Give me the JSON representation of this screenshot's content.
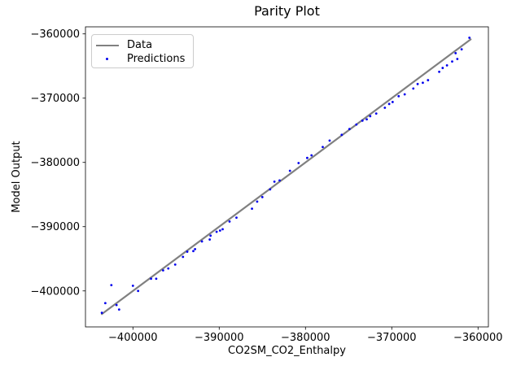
{
  "chart_data": {
    "type": "scatter",
    "title": "Parity Plot",
    "xlabel": "CO2SM_CO2_Enthalpy",
    "ylabel": "Model Output",
    "xlim": [
      -405500,
      -358800
    ],
    "ylim": [
      -405600,
      -358900
    ],
    "grid": false,
    "legend_position": "upper left",
    "xticks": {
      "values": [
        -400000,
        -390000,
        -380000,
        -370000,
        -360000
      ],
      "labels": [
        "−400000",
        "−390000",
        "−380000",
        "−370000",
        "−360000"
      ]
    },
    "yticks": {
      "values": [
        -360000,
        -370000,
        -380000,
        -390000,
        -400000
      ],
      "labels": [
        "−360000",
        "−370000",
        "−380000",
        "−390000",
        "−400000"
      ]
    },
    "colors": {
      "data_line": "#808080",
      "prediction_marker": "#0000ee",
      "spine": "#000000",
      "legend_border": "#cccccc"
    },
    "series": [
      {
        "name": "Data",
        "type": "line",
        "color": "#808080",
        "x": [
          -403600,
          -360850
        ],
        "y": [
          -403600,
          -360850
        ]
      },
      {
        "name": "Predictions",
        "type": "scatter",
        "color": "#0000ee",
        "points": [
          [
            -403600,
            -403400
          ],
          [
            -403200,
            -401900
          ],
          [
            -402500,
            -399100
          ],
          [
            -401900,
            -402200
          ],
          [
            -401600,
            -402900
          ],
          [
            -400000,
            -399200
          ],
          [
            -399400,
            -400000
          ],
          [
            -397900,
            -398100
          ],
          [
            -397300,
            -398100
          ],
          [
            -396500,
            -396800
          ],
          [
            -395900,
            -396500
          ],
          [
            -395100,
            -395900
          ],
          [
            -394200,
            -394700
          ],
          [
            -393700,
            -393900
          ],
          [
            -393000,
            -393800
          ],
          [
            -392800,
            -393500
          ],
          [
            -392000,
            -392300
          ],
          [
            -391100,
            -392000
          ],
          [
            -391000,
            -391400
          ],
          [
            -390300,
            -390800
          ],
          [
            -389900,
            -390600
          ],
          [
            -389600,
            -390400
          ],
          [
            -388800,
            -389200
          ],
          [
            -388000,
            -388600
          ],
          [
            -386200,
            -387200
          ],
          [
            -385600,
            -386100
          ],
          [
            -385000,
            -385400
          ],
          [
            -384100,
            -384200
          ],
          [
            -383600,
            -383000
          ],
          [
            -383000,
            -382800
          ],
          [
            -381800,
            -381300
          ],
          [
            -380800,
            -380100
          ],
          [
            -379800,
            -379300
          ],
          [
            -379300,
            -378900
          ],
          [
            -378000,
            -377600
          ],
          [
            -377200,
            -376600
          ],
          [
            -375800,
            -375700
          ],
          [
            -374900,
            -374800
          ],
          [
            -374100,
            -374100
          ],
          [
            -373400,
            -373500
          ],
          [
            -372900,
            -373300
          ],
          [
            -372500,
            -372800
          ],
          [
            -371800,
            -372400
          ],
          [
            -370800,
            -371500
          ],
          [
            -370300,
            -370900
          ],
          [
            -369900,
            -370600
          ],
          [
            -369200,
            -369700
          ],
          [
            -368500,
            -369400
          ],
          [
            -367500,
            -368500
          ],
          [
            -367000,
            -367800
          ],
          [
            -366400,
            -367600
          ],
          [
            -365800,
            -367200
          ],
          [
            -364500,
            -365900
          ],
          [
            -364100,
            -365300
          ],
          [
            -363600,
            -364900
          ],
          [
            -363000,
            -364300
          ],
          [
            -362400,
            -363900
          ],
          [
            -362600,
            -363000
          ],
          [
            -361900,
            -362400
          ],
          [
            -361000,
            -360600
          ]
        ]
      }
    ]
  }
}
